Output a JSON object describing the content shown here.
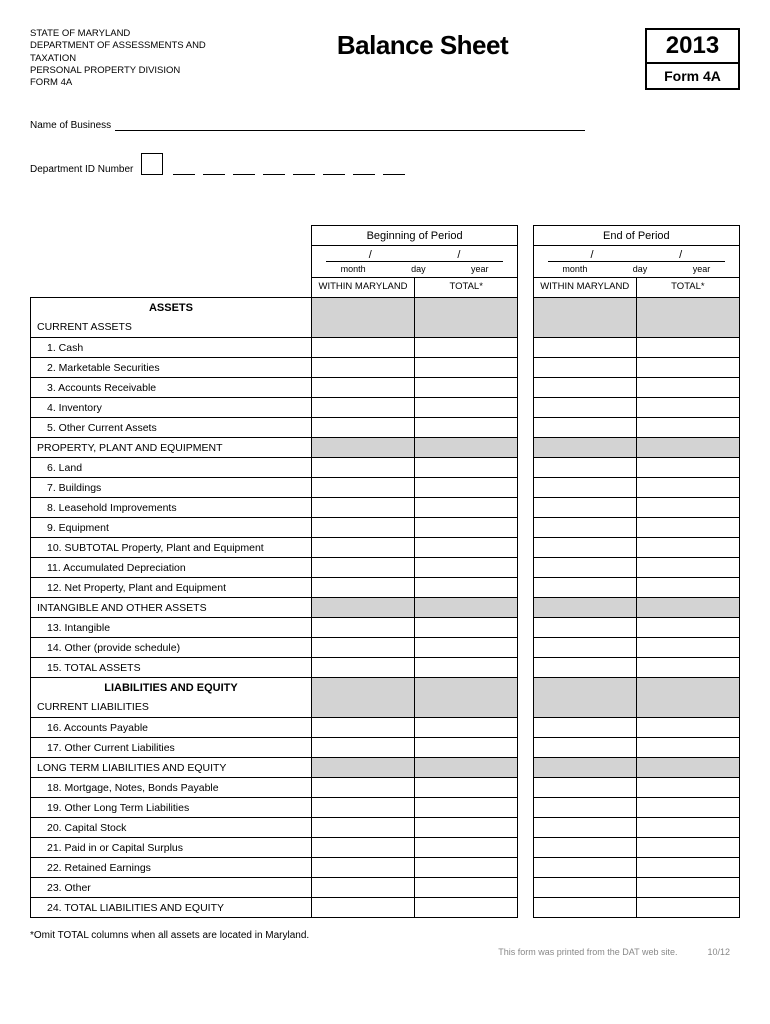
{
  "header": {
    "agency_line1": "STATE OF MARYLAND",
    "agency_line2": "DEPARTMENT OF ASSESSMENTS AND TAXATION",
    "agency_line3": "PERSONAL PROPERTY DIVISION",
    "agency_line4": "FORM 4A",
    "title": "Balance Sheet",
    "year": "2013",
    "form": "Form 4A"
  },
  "fields": {
    "name_label": "Name of Business",
    "dept_label": "Department ID Number"
  },
  "periods": {
    "begin": "Beginning of Period",
    "end": "End of Period",
    "month": "month",
    "day": "day",
    "year": "year"
  },
  "cols": {
    "within": "WITHIN MARYLAND",
    "total": "TOTAL*"
  },
  "sections": {
    "assets": "ASSETS",
    "liab": "LIABILITIES AND EQUITY"
  },
  "rows": {
    "current_assets": "CURRENT ASSETS",
    "r1": "1.   Cash",
    "r2": "2.   Marketable Securities",
    "r3": "3.   Accounts Receivable",
    "r4": "4.   Inventory",
    "r5": "5.   Other Current Assets",
    "ppe": "PROPERTY, PLANT AND EQUIPMENT",
    "r6": "6.   Land",
    "r7": "7.   Buildings",
    "r8": "8.   Leasehold Improvements",
    "r9": "9.   Equipment",
    "r10": "10. SUBTOTAL Property, Plant and Equipment",
    "r11": "11. Accumulated Depreciation",
    "r12": "12. Net Property, Plant and Equipment",
    "intangible": "INTANGIBLE AND OTHER ASSETS",
    "r13": "13. Intangible",
    "r14": "14. Other (provide schedule)",
    "r15": "15. TOTAL ASSETS",
    "current_liab": "CURRENT LIABILITIES",
    "r16": "16. Accounts Payable",
    "r17": "17. Other Current Liabilities",
    "longterm": "LONG TERM LIABILITIES AND EQUITY",
    "r18": "18. Mortgage, Notes, Bonds Payable",
    "r19": "19. Other Long Term Liabilities",
    "r20": "20. Capital Stock",
    "r21": "21. Paid in or Capital Surplus",
    "r22": "22. Retained Earnings",
    "r23": "23. Other",
    "r24": "24. TOTAL LIABILITIES AND EQUITY"
  },
  "footer": {
    "note": "*Omit TOTAL columns when all assets are located in Maryland.",
    "printed": "This form was printed from the DAT web site.",
    "rev": "10/12"
  },
  "style": {
    "shaded_color": "#d3d3d3",
    "border_color": "#000000",
    "font_size_body": 10.5,
    "font_size_header_small": 9.5,
    "font_size_title": 26,
    "font_size_year": 24
  }
}
